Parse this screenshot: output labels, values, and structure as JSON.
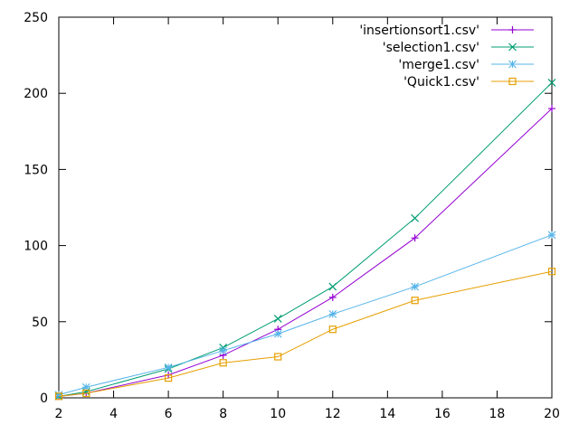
{
  "chart_data": {
    "type": "line",
    "title": "",
    "xlabel": "",
    "ylabel": "",
    "xlim": [
      2,
      20
    ],
    "ylim": [
      0,
      250
    ],
    "xticks": [
      2,
      4,
      6,
      8,
      10,
      12,
      14,
      16,
      18,
      20
    ],
    "yticks": [
      0,
      50,
      100,
      150,
      200,
      250
    ],
    "grid": false,
    "legend_position": "top-right",
    "series": [
      {
        "name": "'insertionsort1.csv'",
        "color": "#9400d3",
        "marker": "plus",
        "x": [
          2,
          3,
          6,
          8,
          10,
          12,
          15,
          20
        ],
        "y": [
          1,
          3,
          15,
          28,
          45,
          66,
          105,
          190
        ]
      },
      {
        "name": "'selection1.csv'",
        "color": "#009e73",
        "marker": "cross",
        "x": [
          2,
          3,
          6,
          8,
          10,
          12,
          15,
          20
        ],
        "y": [
          1,
          4,
          19,
          33,
          52,
          73,
          118,
          207
        ]
      },
      {
        "name": "'merge1.csv'",
        "color": "#56b4e9",
        "marker": "star",
        "x": [
          2,
          3,
          6,
          8,
          10,
          12,
          15,
          20
        ],
        "y": [
          2,
          7,
          20,
          31,
          42,
          55,
          73,
          107
        ]
      },
      {
        "name": "'Quick1.csv'",
        "color": "#e69f00",
        "marker": "square",
        "x": [
          2,
          3,
          6,
          8,
          10,
          12,
          15,
          20
        ],
        "y": [
          1,
          3,
          13,
          23,
          27,
          45,
          64,
          83
        ]
      }
    ]
  }
}
